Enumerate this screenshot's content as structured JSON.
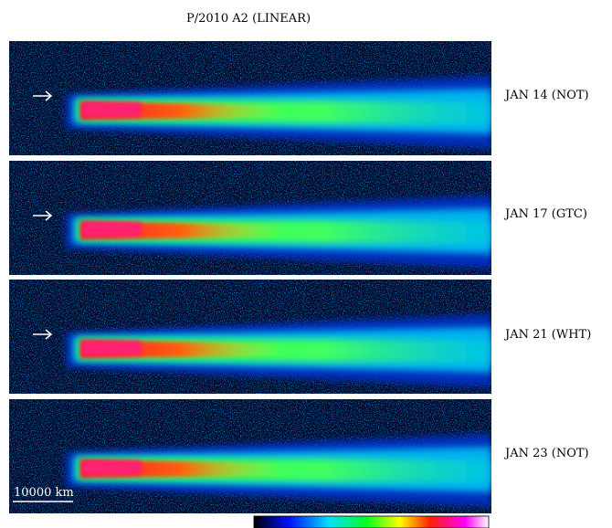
{
  "title": "P/2010 A2 (LINEAR)",
  "panels": [
    {
      "label": "JAN 14 (NOT)"
    },
    {
      "label": "JAN 17 (GTC)"
    },
    {
      "label": "JAN 21 (WHT)"
    },
    {
      "label": "JAN 23 (NOT)"
    }
  ],
  "scale_bar": "10000 km"
}
